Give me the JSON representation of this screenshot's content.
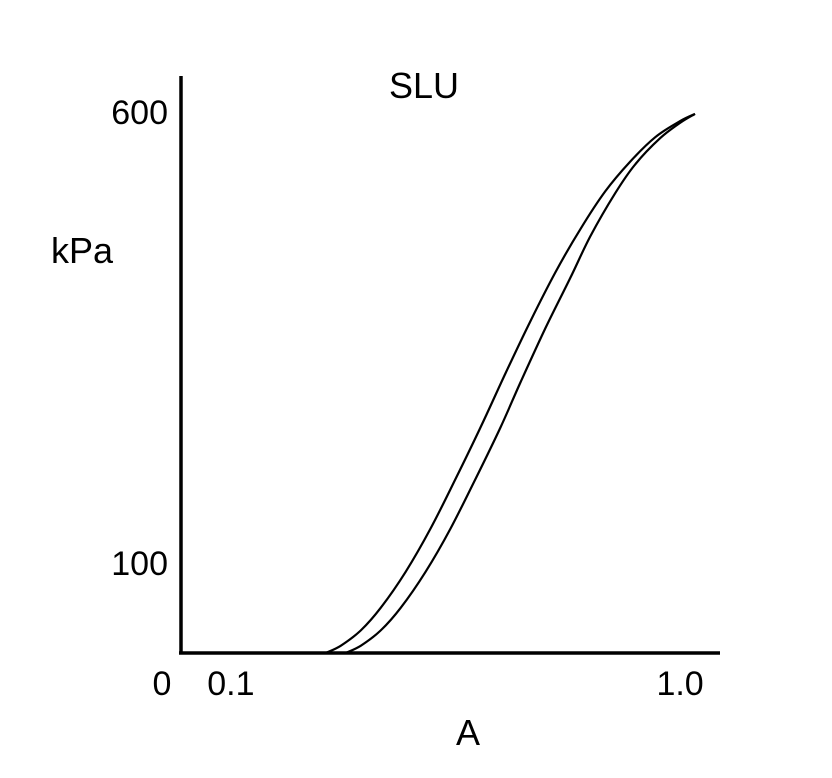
{
  "chart_data": {
    "type": "line",
    "title": "SLU",
    "xlabel": "A",
    "ylabel": "kPa",
    "xlim": [
      0,
      1.08
    ],
    "ylim": [
      0,
      640
    ],
    "x_ticks": [
      {
        "value": 0.1,
        "label": "0.1"
      },
      {
        "value": 1.0,
        "label": "1.0"
      }
    ],
    "y_ticks": [
      {
        "value": 0,
        "label": "0"
      },
      {
        "value": 100,
        "label": "100"
      },
      {
        "value": 600,
        "label": "600"
      }
    ],
    "grid": false,
    "legend": "none",
    "series": [
      {
        "x": [
          0.29,
          0.32,
          0.36,
          0.4,
          0.45,
          0.5,
          0.55,
          0.6,
          0.65,
          0.7,
          0.75,
          0.8,
          0.85,
          0.9,
          0.95,
          1.0,
          1.03
        ],
        "y": [
          0,
          8,
          25,
          50,
          90,
          138,
          193,
          250,
          310,
          368,
          422,
          470,
          512,
          545,
          572,
          590,
          598
        ]
      },
      {
        "x": [
          0.33,
          0.36,
          0.4,
          0.44,
          0.49,
          0.54,
          0.59,
          0.64,
          0.68,
          0.73,
          0.78,
          0.82,
          0.87,
          0.91,
          0.96,
          1.0,
          1.03
        ],
        "y": [
          0,
          8,
          25,
          50,
          90,
          138,
          193,
          250,
          300,
          360,
          416,
          462,
          510,
          542,
          571,
          588,
          598
        ]
      }
    ]
  }
}
